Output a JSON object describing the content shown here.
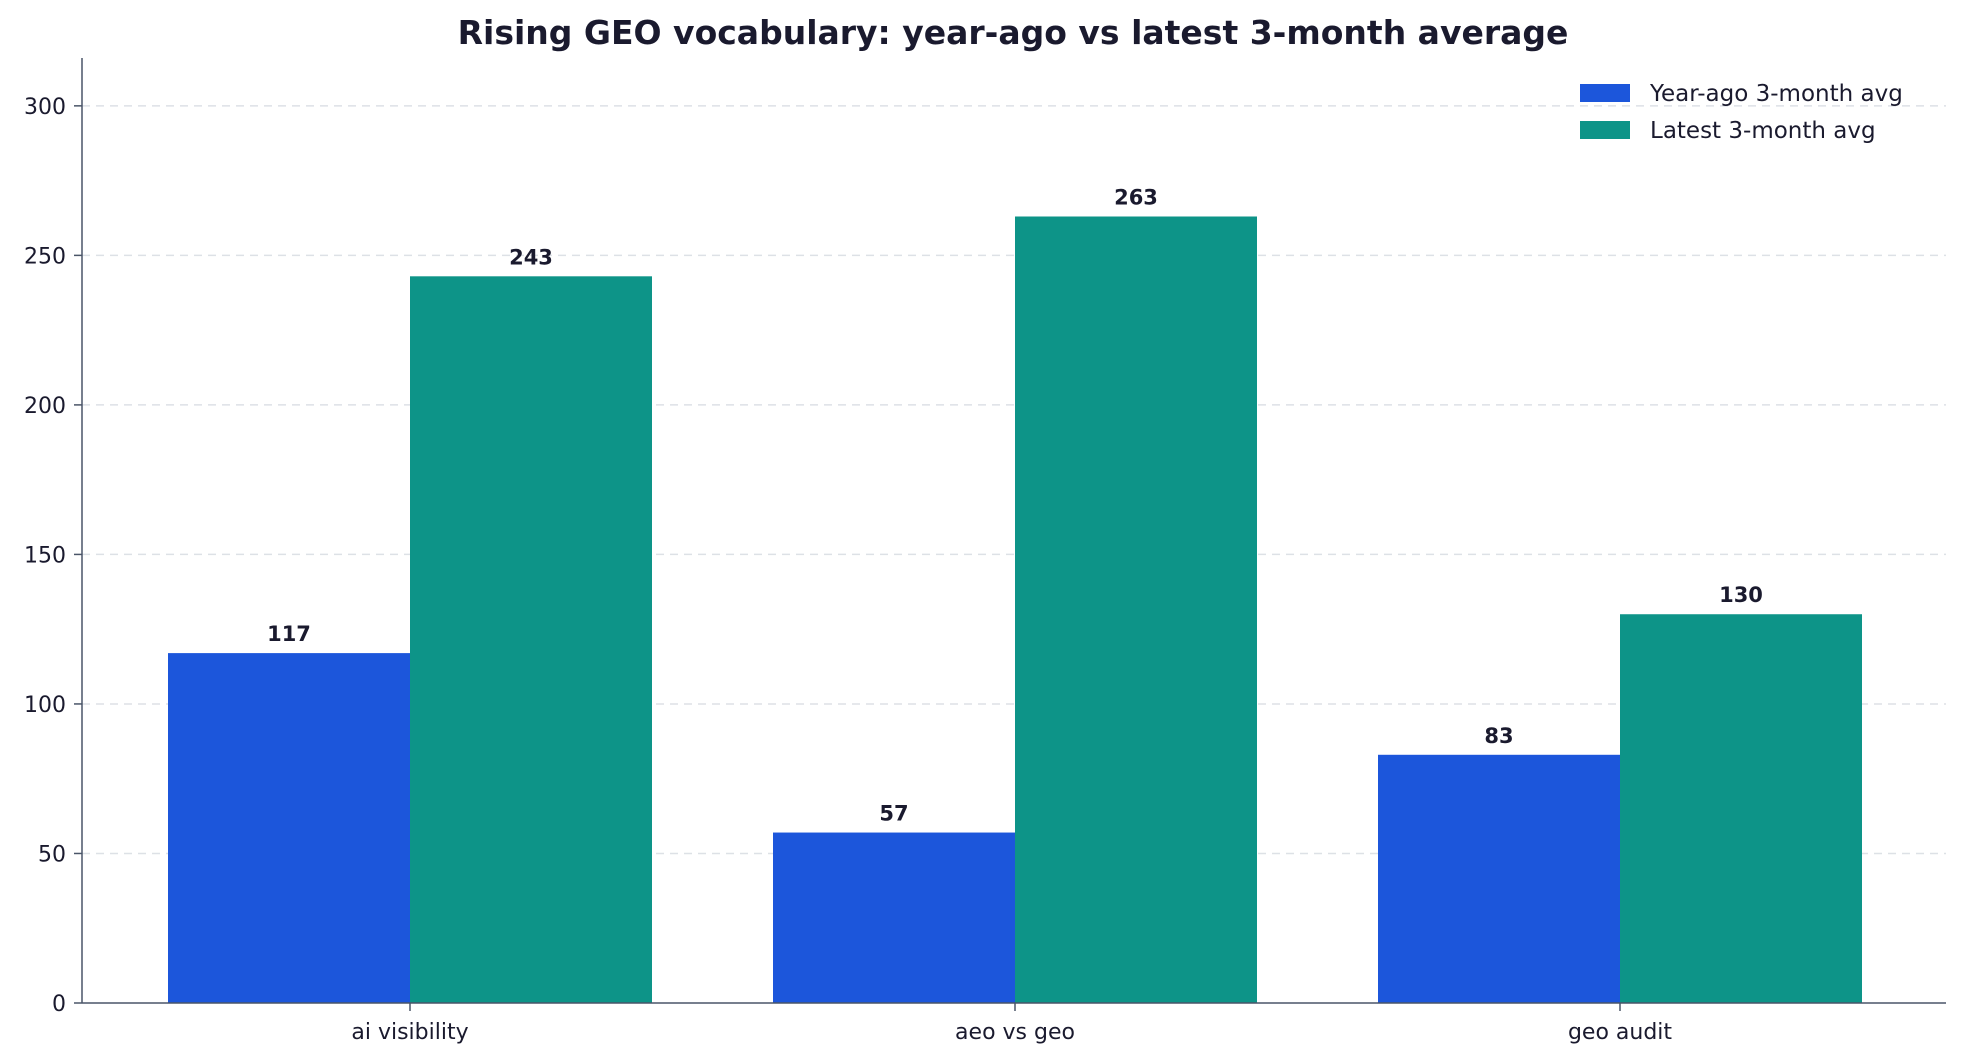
{
  "chart_data": {
    "type": "bar",
    "title": "Rising GEO vocabulary: year-ago vs latest 3-month average",
    "xlabel": "",
    "ylabel": "",
    "categories": [
      "ai visibility",
      "aeo vs geo",
      "geo audit"
    ],
    "series": [
      {
        "name": "Year-ago 3-month avg",
        "color": "#1c56db",
        "values": [
          117,
          57,
          83
        ],
        "value_labels": [
          "117",
          "57",
          "83"
        ]
      },
      {
        "name": "Latest 3-month avg",
        "color": "#0d9488",
        "values": [
          243,
          263,
          130
        ],
        "value_labels": [
          "243",
          "263",
          "130"
        ]
      }
    ],
    "ylim": [
      0,
      316
    ],
    "yticks": [
      0,
      50,
      100,
      150,
      200,
      250,
      300
    ],
    "ytick_labels": [
      "0",
      "50",
      "100",
      "150",
      "200",
      "250",
      "300"
    ],
    "grid": "y-dashed",
    "legend_position": "top-right"
  }
}
